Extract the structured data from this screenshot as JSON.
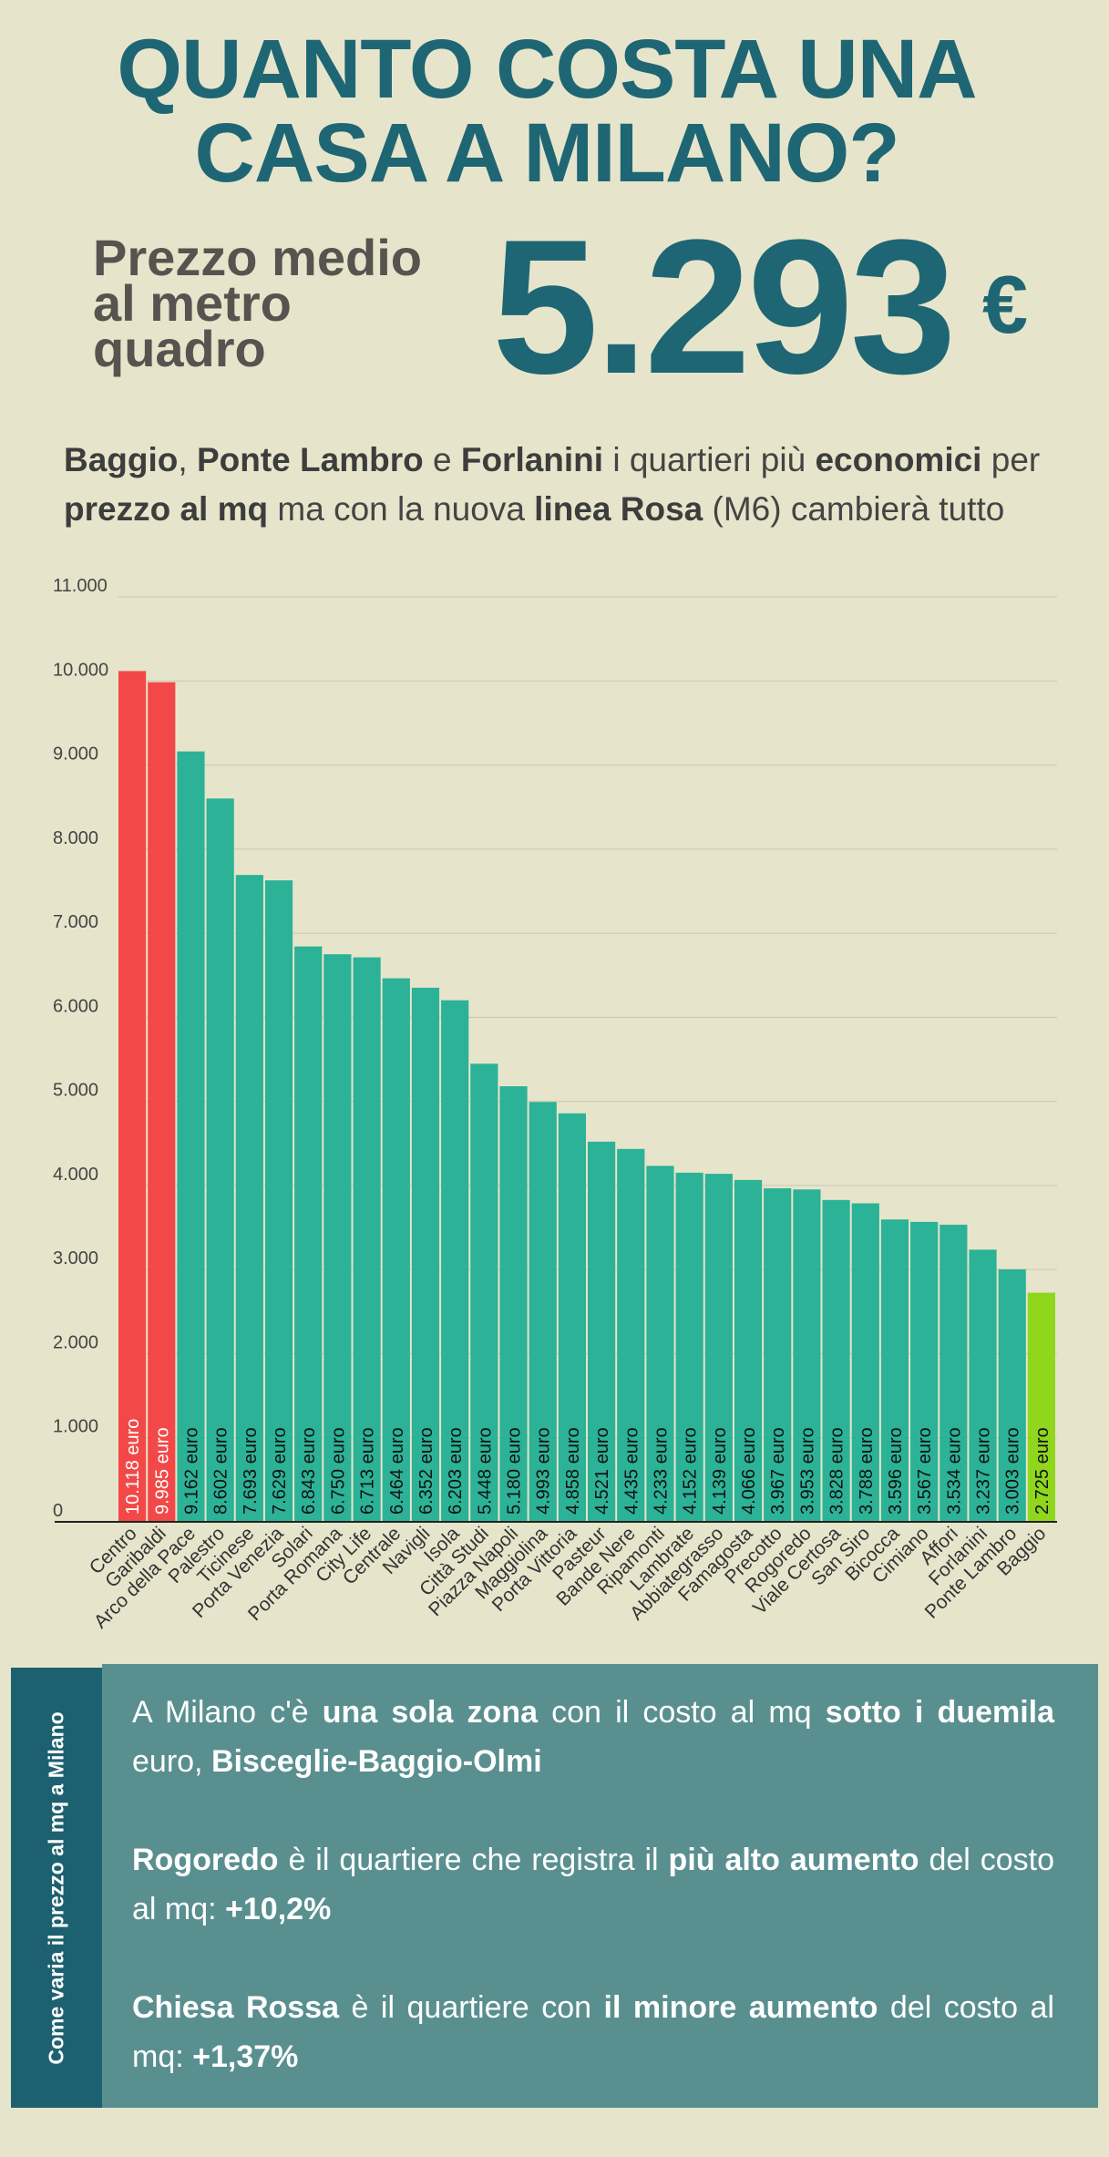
{
  "header": {
    "title_line1": "QUANTO COSTA UNA",
    "title_line2": "CASA A MILANO?",
    "price_label_line1": "Prezzo medio",
    "price_label_line2": "al metro",
    "price_label_line3": "quadro",
    "price_value": "5.293",
    "price_currency": "€"
  },
  "subtitle": {
    "part1": "Baggio",
    "part2": ", ",
    "part3": "Ponte Lambro",
    "part4": " e ",
    "part5": "Forlanini",
    "part6": " i quartieri più ",
    "part7": "economici",
    "part8": " per ",
    "part9": "prezzo al mq",
    "part10": " ma con la nuova ",
    "part11": "linea Rosa",
    "part12": " (M6) cambierà tutto"
  },
  "chart_data": {
    "type": "bar",
    "title": "",
    "xlabel": "",
    "ylabel": "",
    "ylim": [
      0,
      11000
    ],
    "yticks": [
      0,
      1000,
      2000,
      3000,
      4000,
      5000,
      6000,
      7000,
      8000,
      9000,
      10000,
      11000
    ],
    "ytick_labels": [
      "0",
      "1.000",
      "2.000",
      "3.000",
      "4.000",
      "5.000",
      "6.000",
      "7.000",
      "8.000",
      "9.000",
      "10.000",
      "11.000"
    ],
    "grid": true,
    "categories": [
      "Centro",
      "Garibaldi",
      "Arco della Pace",
      "Palestro",
      "Ticinese",
      "Porta Venezia",
      "Solari",
      "Porta Romana",
      "City Life",
      "Centrale",
      "Navigli",
      "Isola",
      "Città Studi",
      "Piazza Napoli",
      "Maggiolina",
      "Porta Vittoria",
      "Pasteur",
      "Bande Nere",
      "Ripamonti",
      "Lambrate",
      "Abbiategrasso",
      "Famagosta",
      "Precotto",
      "Rogoredo",
      "Viale Certosa",
      "San Siro",
      "Bicocca",
      "Cimiano",
      "Affori",
      "Forlanini",
      "Ponte Lambro",
      "Baggio"
    ],
    "values": [
      10118,
      9985,
      9162,
      8602,
      7693,
      7629,
      6843,
      6750,
      6713,
      6464,
      6352,
      6203,
      5448,
      5180,
      4993,
      4858,
      4521,
      4435,
      4233,
      4152,
      4139,
      4066,
      3967,
      3953,
      3828,
      3788,
      3596,
      3567,
      3534,
      3237,
      3003,
      2725
    ],
    "value_labels": [
      "10.118 euro",
      "9.985 euro",
      "9.162 euro",
      "8.602 euro",
      "7.693 euro",
      "7.629 euro",
      "6.843 euro",
      "6.750 euro",
      "6.713 euro",
      "6.464 euro",
      "6.352 euro",
      "6.203 euro",
      "5.448 euro",
      "5.180 euro",
      "4.993 euro",
      "4.858 euro",
      "4.521 euro",
      "4.435 euro",
      "4.233 euro",
      "4.152 euro",
      "4.139 euro",
      "4.066 euro",
      "3.967 euro",
      "3.953 euro",
      "3.828 euro",
      "3.788 euro",
      "3.596 euro",
      "3.567 euro",
      "3.534 euro",
      "3.237 euro",
      "3.003 euro",
      "2.725 euro"
    ],
    "colors": {
      "highest": "#f24848",
      "default": "#2cb296",
      "lowest": "#8fd61c",
      "grid": "#c9c8b2",
      "axis_text": "#444444"
    }
  },
  "panel": {
    "side_label": "Come varia il prezzo al mq a Milano",
    "p1_a": "A Milano c'è ",
    "p1_b": "una sola zona",
    "p1_c": " con il costo al mq ",
    "p1_d": "sotto i duemila",
    "p1_e": " euro, ",
    "p1_f": "Bisceglie-Baggio-Olmi",
    "p2_a": "Rogoredo",
    "p2_b": " è il quartiere che registra il ",
    "p2_c": "più alto aumento",
    "p2_d": " del costo al mq: ",
    "p2_e": "+10,2%",
    "p3_a": "Chiesa Rossa",
    "p3_b": " è il quartiere con ",
    "p3_c": "il minore aumento",
    "p3_d": " del costo al mq: ",
    "p3_e": "+1,37%"
  }
}
